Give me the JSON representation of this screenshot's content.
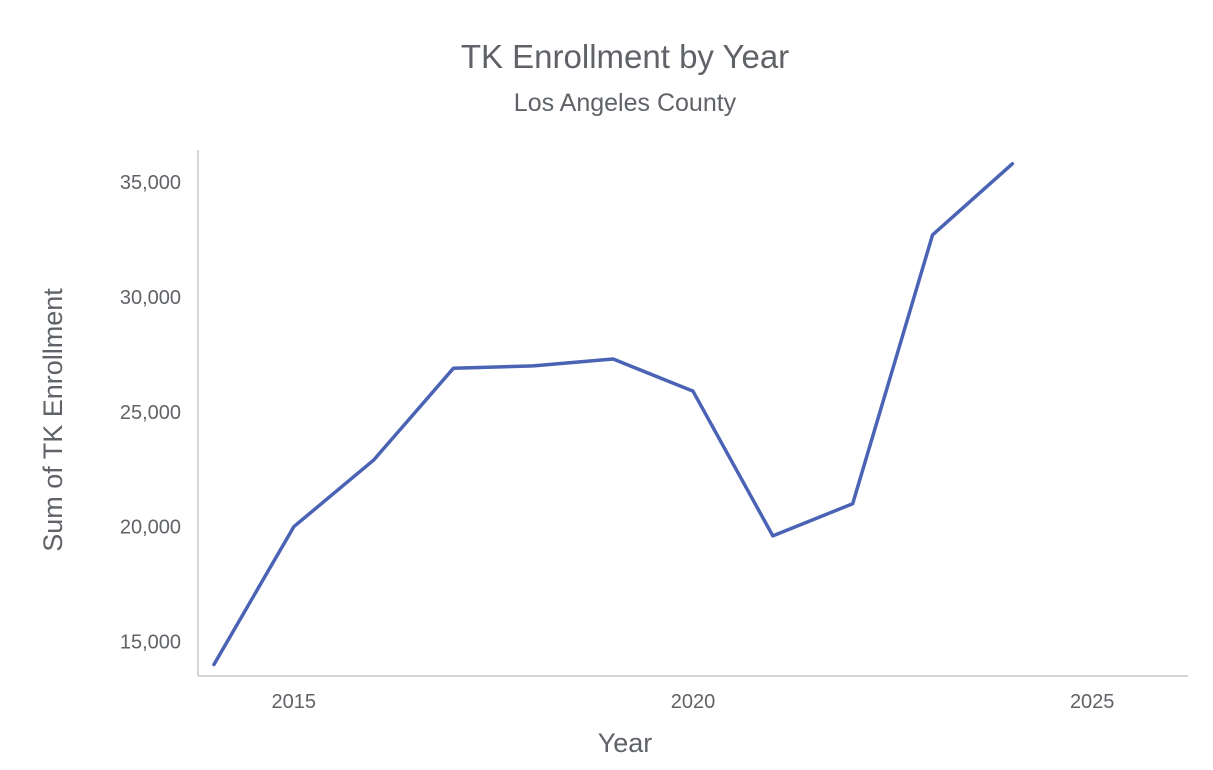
{
  "chart_data": {
    "type": "line",
    "title": "TK Enrollment by Year",
    "subtitle": "Los Angeles County",
    "xlabel": "Year",
    "ylabel": "Sum of TK Enrollment",
    "xlim": [
      2013.8,
      2026.2
    ],
    "ylim": [
      13500,
      36400
    ],
    "x_ticks": [
      {
        "value": 2015,
        "label": "2015"
      },
      {
        "value": 2020,
        "label": "2020"
      },
      {
        "value": 2025,
        "label": "2025"
      }
    ],
    "y_ticks": [
      {
        "value": 15000,
        "label": "15,000"
      },
      {
        "value": 20000,
        "label": "20,000"
      },
      {
        "value": 25000,
        "label": "25,000"
      },
      {
        "value": 30000,
        "label": "30,000"
      },
      {
        "value": 35000,
        "label": "35,000"
      }
    ],
    "grid": false,
    "legend": "none",
    "series": [
      {
        "color": "#4a63b4",
        "x": [
          2014,
          2015,
          2016,
          2017,
          2018,
          2019,
          2020,
          2021,
          2022,
          2023,
          2024
        ],
        "values": [
          14000,
          20000,
          22900,
          26900,
          27000,
          27300,
          25900,
          19600,
          21000,
          32700,
          35800
        ]
      }
    ]
  }
}
